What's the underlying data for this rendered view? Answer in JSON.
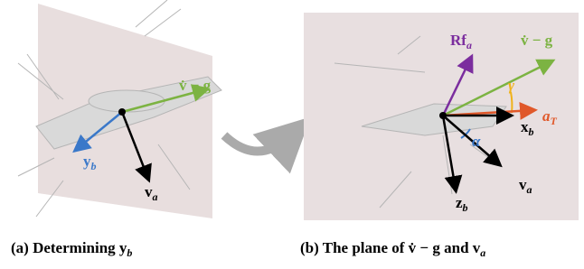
{
  "panels": [
    {
      "labels": {
        "vdot_g": "v̇ − g",
        "y_b": {
          "base": "y",
          "sub": "b"
        },
        "v_a": {
          "base": "v",
          "sub": "a"
        }
      },
      "caption": {
        "tag": "(a)",
        "text": "Determining",
        "math": {
          "base": "y",
          "sub": "b"
        }
      }
    },
    {
      "labels": {
        "Rf_a": {
          "base": "Rf",
          "sub": "a"
        },
        "vdot_g": "v̇ − g",
        "gamma": "γ",
        "alpha": "α",
        "x_b": {
          "base": "x",
          "sub": "b"
        },
        "a_T": {
          "base": "a",
          "sub": "T"
        },
        "v_a": {
          "base": "v",
          "sub": "a"
        },
        "z_b": {
          "base": "z",
          "sub": "b"
        }
      },
      "caption": {
        "tag": "(b)",
        "text": "The plane of",
        "math1": "v̇ − g",
        "join": "and",
        "math2": {
          "base": "v",
          "sub": "a"
        }
      }
    }
  ]
}
